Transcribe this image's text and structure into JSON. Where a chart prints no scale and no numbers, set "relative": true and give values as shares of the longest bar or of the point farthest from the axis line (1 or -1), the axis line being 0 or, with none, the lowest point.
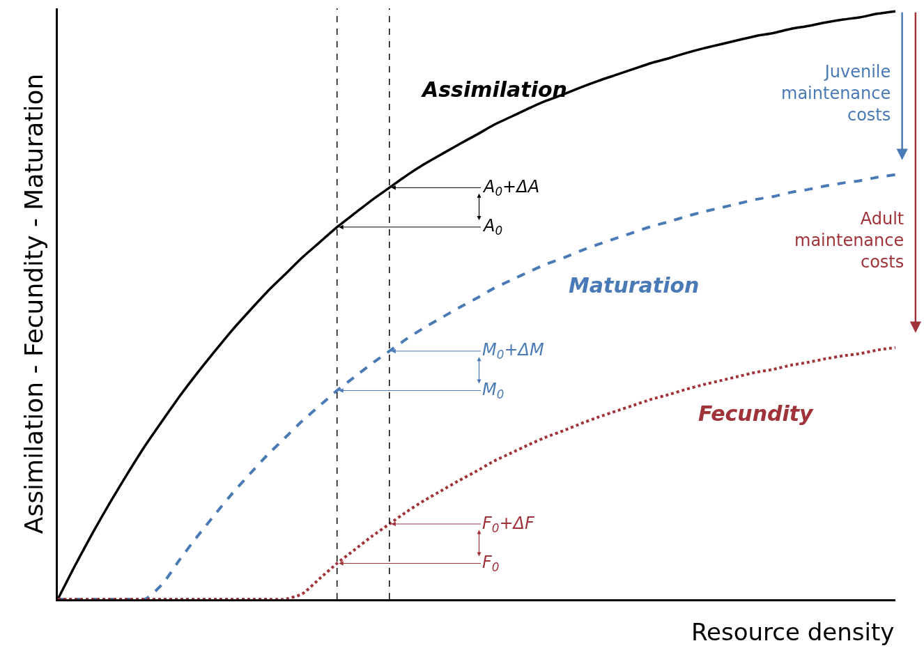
{
  "chart_data": {
    "type": "line",
    "relative": true,
    "legend": false,
    "xlabel": "Resource density",
    "ylabel": "Assimilation - Fecundity - Maturation",
    "categories": [
      null,
      null,
      null,
      null,
      null,
      null,
      null,
      null,
      null,
      null,
      null,
      null,
      null,
      null,
      null,
      null,
      null,
      null,
      null,
      null,
      null,
      null,
      null,
      null,
      null,
      null,
      null,
      null,
      null,
      null,
      null,
      null,
      null,
      null,
      null,
      null,
      null,
      null,
      null,
      null,
      null,
      null,
      null,
      null,
      null,
      null,
      null,
      null,
      null
    ],
    "series": [
      {
        "name": "Assimilation",
        "color": "#000000",
        "line_style": "solid",
        "values": [
          0,
          0.058,
          0.113,
          0.165,
          0.214,
          0.261,
          0.304,
          0.346,
          0.385,
          0.422,
          0.458,
          0.491,
          0.523,
          0.552,
          0.581,
          0.607,
          0.633,
          0.656,
          0.679,
          0.7,
          0.721,
          0.74,
          0.757,
          0.774,
          0.79,
          0.807,
          0.821,
          0.835,
          0.848,
          0.859,
          0.871,
          0.882,
          0.892,
          0.902,
          0.912,
          0.92,
          0.929,
          0.937,
          0.944,
          0.951,
          0.958,
          0.963,
          0.97,
          0.975,
          0.981,
          0.986,
          0.99,
          0.996,
          1.0
        ]
      },
      {
        "name": "Maturation",
        "color": "#4a7ab5",
        "line_style": "dashed",
        "values": [
          0,
          0,
          0,
          0,
          0,
          0,
          0.026,
          0.068,
          0.107,
          0.144,
          0.18,
          0.213,
          0.245,
          0.274,
          0.303,
          0.329,
          0.355,
          0.378,
          0.401,
          0.422,
          0.443,
          0.462,
          0.479,
          0.496,
          0.512,
          0.529,
          0.543,
          0.557,
          0.57,
          0.581,
          0.593,
          0.604,
          0.614,
          0.624,
          0.634,
          0.642,
          0.651,
          0.659,
          0.666,
          0.673,
          0.68,
          0.685,
          0.692,
          0.697,
          0.703,
          0.708,
          0.712,
          0.718,
          0.722
        ]
      },
      {
        "name": "Fecundity",
        "color": "#a0333a",
        "line_style": "dotted",
        "values": [
          0,
          0,
          0,
          0,
          0,
          0,
          0,
          0,
          0,
          0,
          0,
          0,
          0,
          0,
          0.009,
          0.035,
          0.061,
          0.084,
          0.107,
          0.128,
          0.149,
          0.168,
          0.185,
          0.202,
          0.218,
          0.235,
          0.249,
          0.263,
          0.276,
          0.287,
          0.299,
          0.31,
          0.32,
          0.33,
          0.34,
          0.348,
          0.357,
          0.365,
          0.372,
          0.379,
          0.386,
          0.391,
          0.398,
          0.403,
          0.409,
          0.414,
          0.418,
          0.424,
          0.428
        ]
      }
    ],
    "annotations": [
      "A$_{0}$+ΔA",
      "A$_{0}$",
      "M$_{0}$+ΔM",
      "M$_{0}$",
      "F$_{0}$+ΔF",
      "F$_{0}$",
      "Juvenile\nmaintenance\ncosts",
      "Adult\nmaintenance\ncosts"
    ]
  }
}
